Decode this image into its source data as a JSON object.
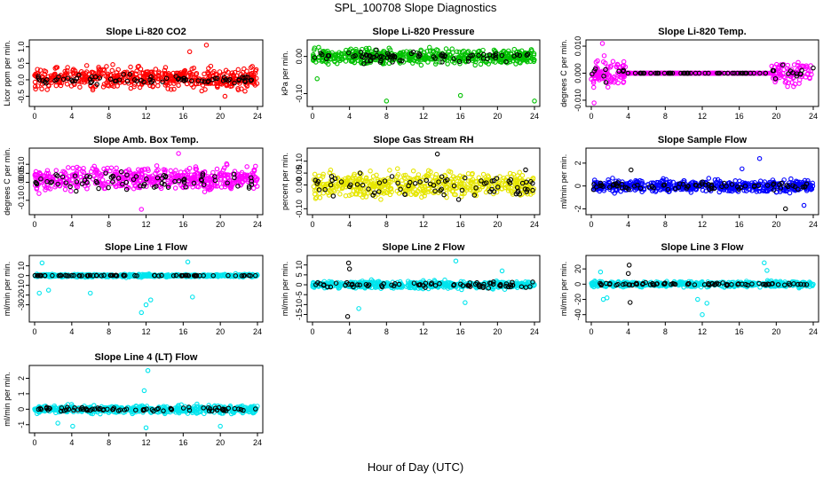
{
  "figure": {
    "title": "SPL_100708  Slope Diagnostics",
    "xlabel": "Hour of Day (UTC)"
  },
  "chart_data": [
    {
      "type": "scatter",
      "title": "Slope Li-820 CO2",
      "ylabel": "Licor ppm per min.",
      "color": "#ff0000",
      "xlim": [
        0,
        24
      ],
      "xticks": [
        0,
        4,
        8,
        12,
        16,
        20,
        24
      ],
      "ylim": [
        -0.7,
        1.1
      ],
      "yticks": [
        "-0.5",
        "0.0",
        "0.5",
        "1.0"
      ],
      "ytick_values": [
        -0.5,
        0,
        0.5,
        1.0
      ],
      "series": [
        {
          "color": "#ff0000",
          "center": 0.05,
          "spread": 0.28,
          "n": 520,
          "outliers": [
            [
              16.7,
              0.85
            ],
            [
              18.5,
              1.05
            ],
            [
              20.5,
              -0.5
            ]
          ]
        },
        {
          "color": "#000000",
          "center": 0.0,
          "spread": 0.12,
          "n": 75
        }
      ]
    },
    {
      "type": "scatter",
      "title": "Slope Li-820 Pressure",
      "ylabel": "kPa per min.",
      "color": "#00c000",
      "xlim": [
        0,
        24
      ],
      "xticks": [
        0,
        4,
        8,
        12,
        16,
        20,
        24
      ],
      "ylim": [
        -0.125,
        0.035
      ],
      "yticks": [
        "-0.10",
        "0.00"
      ],
      "ytick_values": [
        -0.1,
        0.0
      ],
      "series": [
        {
          "color": "#00c000",
          "center": 0.0,
          "spread": 0.018,
          "n": 520,
          "outliers": [
            [
              8,
              -0.12
            ],
            [
              16,
              -0.105
            ],
            [
              24,
              -0.12
            ],
            [
              0.5,
              -0.06
            ]
          ]
        },
        {
          "color": "#000000",
          "center": -0.002,
          "spread": 0.012,
          "n": 75
        }
      ]
    },
    {
      "type": "scatter",
      "title": "Slope Li-820 Temp.",
      "ylabel": "degrees C per min.",
      "color": "#ff00ff",
      "xlim": [
        0,
        24
      ],
      "xticks": [
        0,
        4,
        8,
        12,
        16,
        20,
        24
      ],
      "ylim": [
        -0.011,
        0.011
      ],
      "yticks": [
        "-0.010",
        "0.000",
        "0.010"
      ],
      "ytick_values": [
        -0.01,
        0.0,
        0.01
      ],
      "series": [
        {
          "color": "#ff00ff",
          "center": 0.0,
          "spread": 0.004,
          "n": 520,
          "flat_range": [
            3.8,
            19.5
          ],
          "outliers": [
            [
              1.2,
              0.011
            ],
            [
              0.3,
              -0.011
            ]
          ]
        },
        {
          "color": "#000000",
          "center": 0.0,
          "spread": 0.0025,
          "n": 75,
          "flat_range": [
            3.8,
            19.5
          ]
        }
      ]
    },
    {
      "type": "scatter",
      "title": "Slope Amb. Box Temp.",
      "ylabel": "degrees C per min.",
      "color": "#ff00ff",
      "xlim": [
        0,
        24
      ],
      "xticks": [
        0,
        4,
        8,
        12,
        16,
        20,
        24
      ],
      "ylim": [
        -0.16,
        0.17
      ],
      "yticks": [
        "-0.10",
        "0.00",
        "0.05",
        "0.10"
      ],
      "ytick_values": [
        -0.1,
        0.0,
        0.05,
        0.1
      ],
      "series": [
        {
          "color": "#ff00ff",
          "center": 0.02,
          "spread": 0.055,
          "n": 520,
          "outliers": [
            [
              15.5,
              0.16
            ],
            [
              11.5,
              -0.15
            ]
          ]
        },
        {
          "color": "#000000",
          "center": 0.01,
          "spread": 0.04,
          "n": 75
        }
      ]
    },
    {
      "type": "scatter",
      "title": "Slope Gas Stream RH",
      "ylabel": "percent per min.",
      "color": "#ffff00",
      "xlim": [
        0,
        24
      ],
      "xticks": [
        0,
        4,
        8,
        12,
        16,
        20,
        24
      ],
      "ylim": [
        -0.11,
        0.14
      ],
      "yticks": [
        "-0.10",
        "0.00",
        "0.05",
        "0.10"
      ],
      "ytick_values": [
        -0.1,
        0.0,
        0.05,
        0.1
      ],
      "series": [
        {
          "color": "#e6e600",
          "center": 0.0,
          "spread": 0.045,
          "n": 520,
          "outliers": []
        },
        {
          "color": "#000000",
          "center": 0.0,
          "spread": 0.04,
          "n": 75,
          "outliers": [
            [
              13.5,
              0.13
            ]
          ]
        }
      ]
    },
    {
      "type": "scatter",
      "title": "Slope Sample Flow",
      "ylabel": "ml/min per min.",
      "color": "#0000ff",
      "xlim": [
        0,
        24
      ],
      "xticks": [
        0,
        4,
        8,
        12,
        16,
        20,
        24
      ],
      "ylim": [
        -2.2,
        3.0
      ],
      "yticks": [
        "-2",
        "0",
        "2"
      ],
      "ytick_values": [
        -2,
        0,
        2
      ],
      "series": [
        {
          "color": "#0000ff",
          "center": 0.0,
          "spread": 0.45,
          "n": 520,
          "outliers": [
            [
              18.2,
              2.4
            ],
            [
              16.3,
              1.5
            ],
            [
              23,
              -1.7
            ]
          ]
        },
        {
          "color": "#000000",
          "center": 0.0,
          "spread": 0.35,
          "n": 75,
          "outliers": [
            [
              21,
              -2.0
            ],
            [
              4.3,
              1.4
            ]
          ]
        }
      ]
    },
    {
      "type": "scatter",
      "title": "Slope Line 1 Flow",
      "ylabel": "ml/min per min.",
      "color": "#00e5ee",
      "xlim": [
        0,
        24
      ],
      "xticks": [
        0,
        4,
        8,
        12,
        16,
        20,
        24
      ],
      "ylim": [
        -44,
        17
      ],
      "yticks": [
        "-30",
        "-20",
        "-10",
        "0",
        "10"
      ],
      "ytick_values": [
        -30,
        -20,
        -10,
        0,
        10
      ],
      "series": [
        {
          "color": "#00e5ee",
          "center": 0.0,
          "spread": 1.2,
          "n": 520,
          "outliers": [
            [
              0.5,
              -18
            ],
            [
              0.8,
              13
            ],
            [
              1.5,
              -15
            ],
            [
              6,
              -18
            ],
            [
              11.5,
              -38
            ],
            [
              12,
              -30
            ],
            [
              12.5,
              -25
            ],
            [
              16.5,
              14
            ],
            [
              17,
              -22
            ]
          ]
        },
        {
          "color": "#000000",
          "center": 0.0,
          "spread": 0.3,
          "n": 75
        }
      ]
    },
    {
      "type": "scatter",
      "title": "Slope Line 2 Flow",
      "ylabel": "ml/min per min.",
      "color": "#00e5ee",
      "xlim": [
        0,
        24
      ],
      "xticks": [
        0,
        4,
        8,
        12,
        16,
        20,
        24
      ],
      "ylim": [
        -17,
        13
      ],
      "yticks": [
        "-15",
        "-10",
        "-5",
        "0",
        "5",
        "10"
      ],
      "ytick_values": [
        -15,
        -10,
        -5,
        0,
        5,
        10
      ],
      "series": [
        {
          "color": "#00e5ee",
          "center": 0.0,
          "spread": 1.6,
          "n": 520,
          "outliers": [
            [
              5,
              -12
            ],
            [
              15.5,
              12
            ],
            [
              16.5,
              -9
            ],
            [
              20.5,
              7
            ]
          ]
        },
        {
          "color": "#000000",
          "center": 0.0,
          "spread": 1.3,
          "n": 75,
          "outliers": [
            [
              3.9,
              11
            ],
            [
              4.0,
              8
            ],
            [
              3.8,
              -16
            ]
          ]
        }
      ]
    },
    {
      "type": "scatter",
      "title": "Slope Line 3 Flow",
      "ylabel": "ml/min per min.",
      "color": "#00e5ee",
      "xlim": [
        0,
        24
      ],
      "xticks": [
        0,
        4,
        8,
        12,
        16,
        20,
        24
      ],
      "ylim": [
        -45,
        33
      ],
      "yticks": [
        "-40",
        "-20",
        "0",
        "20"
      ],
      "ytick_values": [
        -40,
        -20,
        0,
        20
      ],
      "series": [
        {
          "color": "#00e5ee",
          "center": 0.0,
          "spread": 3.0,
          "n": 520,
          "outliers": [
            [
              1,
              16
            ],
            [
              1.3,
              -20
            ],
            [
              1.7,
              -18
            ],
            [
              11.5,
              -20
            ],
            [
              12,
              -40
            ],
            [
              12.5,
              -25
            ],
            [
              18.7,
              28
            ],
            [
              19,
              18
            ]
          ]
        },
        {
          "color": "#000000",
          "center": 0.0,
          "spread": 1.5,
          "n": 75,
          "outliers": [
            [
              4.1,
              25
            ],
            [
              4.2,
              -24
            ],
            [
              4.0,
              14
            ]
          ]
        }
      ]
    },
    {
      "type": "scatter",
      "title": "Slope Line 4 (LT) Flow",
      "ylabel": "ml/min per min.",
      "color": "#00e5ee",
      "xlim": [
        0,
        24
      ],
      "xticks": [
        0,
        4,
        8,
        12,
        16,
        20,
        24
      ],
      "ylim": [
        -1.3,
        2.6
      ],
      "yticks": [
        "-1",
        "0",
        "1",
        "2"
      ],
      "ytick_values": [
        -1,
        0,
        1,
        2
      ],
      "series": [
        {
          "color": "#00e5ee",
          "center": 0.0,
          "spread": 0.22,
          "n": 520,
          "outliers": [
            [
              12.2,
              2.5
            ],
            [
              11.8,
              1.2
            ],
            [
              12,
              -1.2
            ],
            [
              4.1,
              -1.1
            ],
            [
              20,
              -1.1
            ],
            [
              2.5,
              -0.9
            ]
          ]
        },
        {
          "color": "#000000",
          "center": 0.0,
          "spread": 0.12,
          "n": 75
        }
      ]
    }
  ]
}
